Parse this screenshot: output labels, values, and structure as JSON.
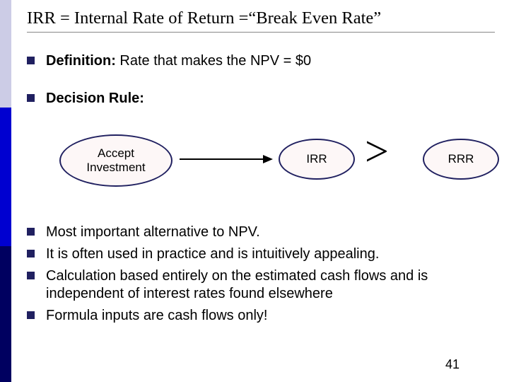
{
  "title": "IRR = Internal Rate of Return =“Break Even Rate”",
  "b1_label": "Definition:",
  "b1_text": " Rate that makes the NPV = $0",
  "b2_label": "Decision Rule:",
  "diagram": {
    "oval1_l1": "Accept",
    "oval1_l2": "Investment",
    "oval2": "IRR",
    "gt": ">",
    "oval3": "RRR"
  },
  "p1": "Most important alternative to NPV.",
  "p2": "It is often used in practice and is intuitively appealing.",
  "p3": "Calculation based entirely on the estimated cash flows and is independent of interest rates found elsewhere",
  "p4": "Formula inputs are cash flows only!",
  "pagenum": "41"
}
